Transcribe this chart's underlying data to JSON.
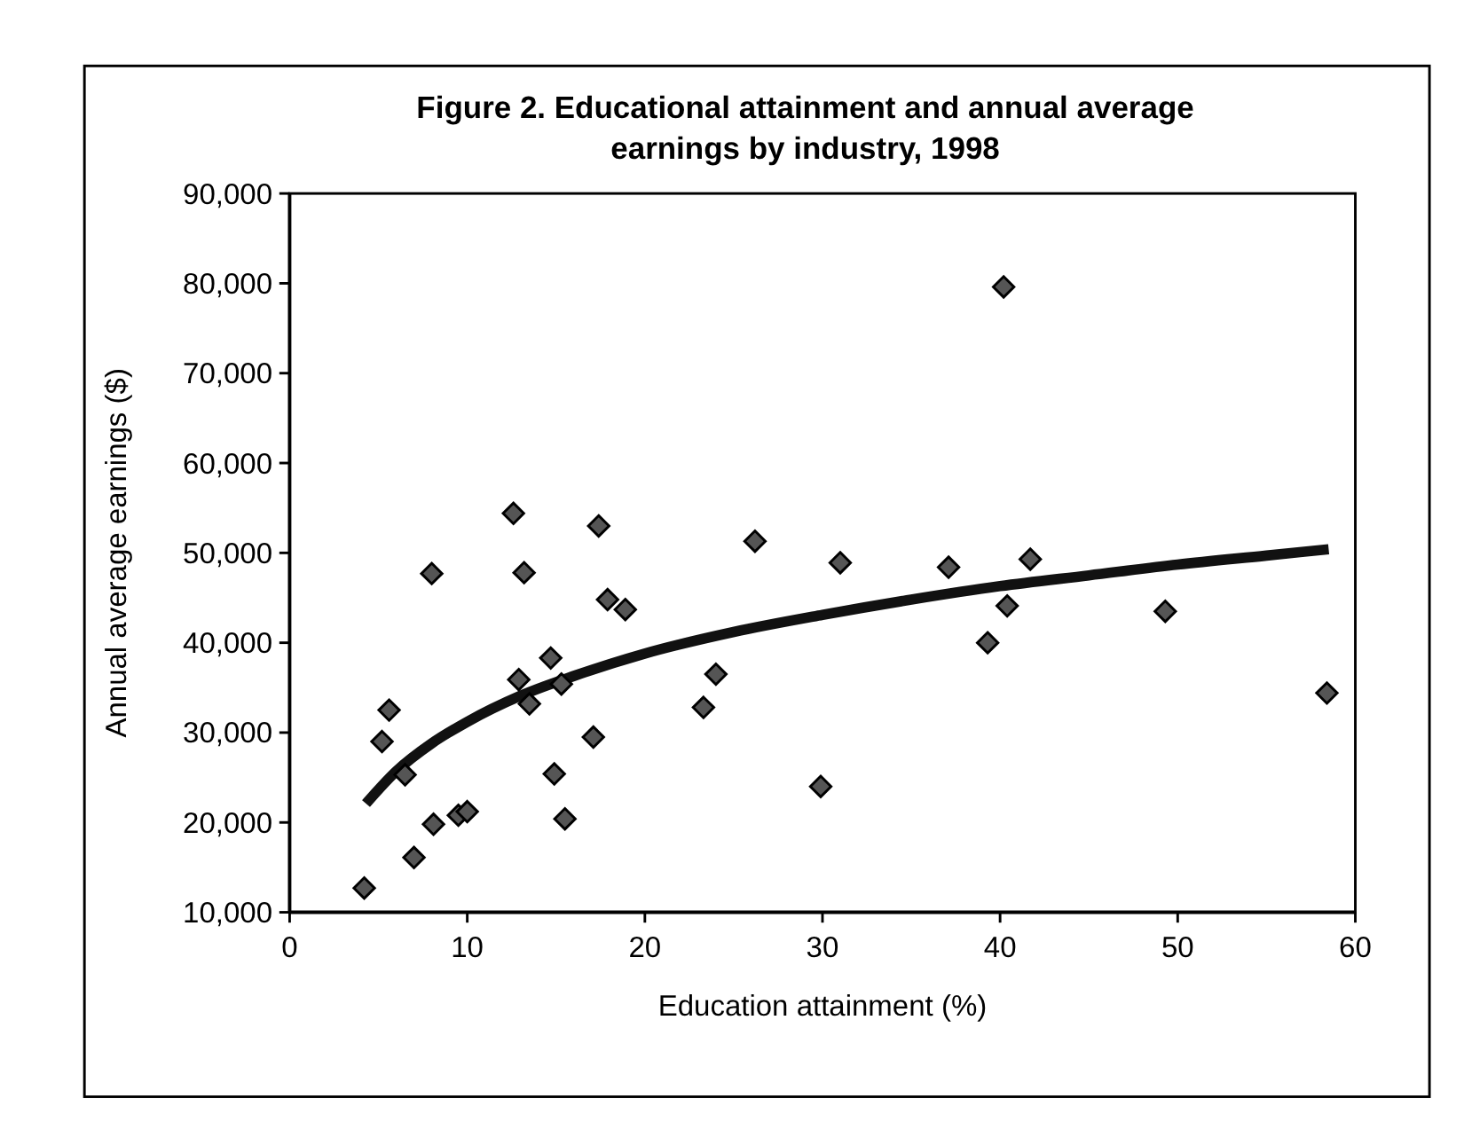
{
  "chart_data": {
    "type": "scatter",
    "title": "Figure 2. Educational attainment and annual average earnings by industry, 1998",
    "xlabel": "Education attainment (%)",
    "ylabel": "Annual average earnings ($)",
    "xlim": [
      0,
      60
    ],
    "xticks": [
      0,
      10,
      20,
      30,
      40,
      50,
      60
    ],
    "ylim": [
      10000,
      90000
    ],
    "yticks": [
      {
        "value": 10000,
        "label": "10,000"
      },
      {
        "value": 20000,
        "label": "20,000"
      },
      {
        "value": 30000,
        "label": "30,000"
      },
      {
        "value": 40000,
        "label": "40,000"
      },
      {
        "value": 50000,
        "label": "50,000"
      },
      {
        "value": 60000,
        "label": "60,000"
      },
      {
        "value": 70000,
        "label": "70,000"
      },
      {
        "value": 80000,
        "label": "80,000"
      },
      {
        "value": 90000,
        "label": "90,000"
      }
    ],
    "grid": false,
    "marker": "diamond",
    "series": [
      {
        "color": "#555555",
        "x": [
          4.2,
          7.0,
          8.1,
          9.5,
          10.0,
          5.2,
          5.6,
          6.5,
          8.0,
          12.6,
          13.2,
          12.9,
          13.5,
          14.7,
          15.3,
          17.1,
          14.9,
          15.5,
          17.4,
          17.9,
          18.9,
          23.3,
          24.0,
          26.2,
          31.0,
          37.1,
          41.7,
          40.4,
          39.3,
          29.9,
          49.3,
          58.4,
          40.2
        ],
        "values": [
          12700,
          16100,
          19800,
          20800,
          21200,
          29000,
          32500,
          25300,
          47700,
          54400,
          47800,
          35900,
          33200,
          38300,
          35400,
          29500,
          25400,
          20400,
          53000,
          44800,
          43700,
          32800,
          36500,
          51300,
          48900,
          48400,
          49300,
          44100,
          40000,
          24000,
          43500,
          34400,
          79600
        ]
      },
      {
        "type": "line",
        "color": "#111111",
        "line_style": "solid",
        "marker": "none",
        "x": [
          4.3,
          6,
          8,
          10,
          13,
          16,
          20,
          25,
          30,
          35,
          40,
          45,
          50,
          55,
          58.5
        ],
        "values": [
          22100,
          25700,
          28800,
          31200,
          34100,
          36300,
          38800,
          41200,
          43100,
          44800,
          46300,
          47500,
          48700,
          49700,
          50400
        ]
      }
    ]
  }
}
